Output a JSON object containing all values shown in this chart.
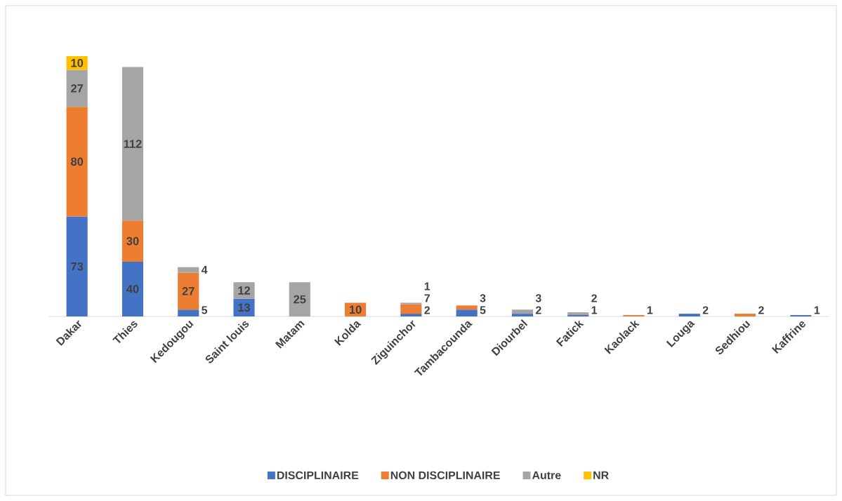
{
  "chart_data": {
    "type": "bar",
    "stacked": true,
    "data_labels": true,
    "legend": "bottom",
    "categories": [
      "Dakar",
      "Thies",
      "Kedougou",
      "Saint louis",
      "Matam",
      "Kolda",
      "Ziguinchor",
      "Tambacounda",
      "Diourbel",
      "Fatick",
      "Kaolack",
      "Louga",
      "Sedhiou",
      "Kaffrine"
    ],
    "series": [
      {
        "name": "DISCIPLINAIRE",
        "color": "#4472c4",
        "values": [
          73,
          40,
          5,
          13,
          null,
          null,
          2,
          5,
          2,
          1,
          null,
          2,
          null,
          1
        ]
      },
      {
        "name": "NON DISCIPLINAIRE",
        "color": "#ed7d31",
        "values": [
          80,
          30,
          27,
          null,
          null,
          10,
          7,
          3,
          null,
          null,
          1,
          null,
          2,
          null
        ]
      },
      {
        "name": "Autre",
        "color": "#a5a5a5",
        "values": [
          27,
          112,
          4,
          12,
          25,
          null,
          1,
          null,
          3,
          2,
          null,
          null,
          null,
          null
        ]
      },
      {
        "name": "NR",
        "color": "#ffc000",
        "values": [
          10,
          null,
          null,
          null,
          null,
          null,
          null,
          null,
          null,
          null,
          null,
          null,
          null,
          null
        ]
      }
    ]
  }
}
